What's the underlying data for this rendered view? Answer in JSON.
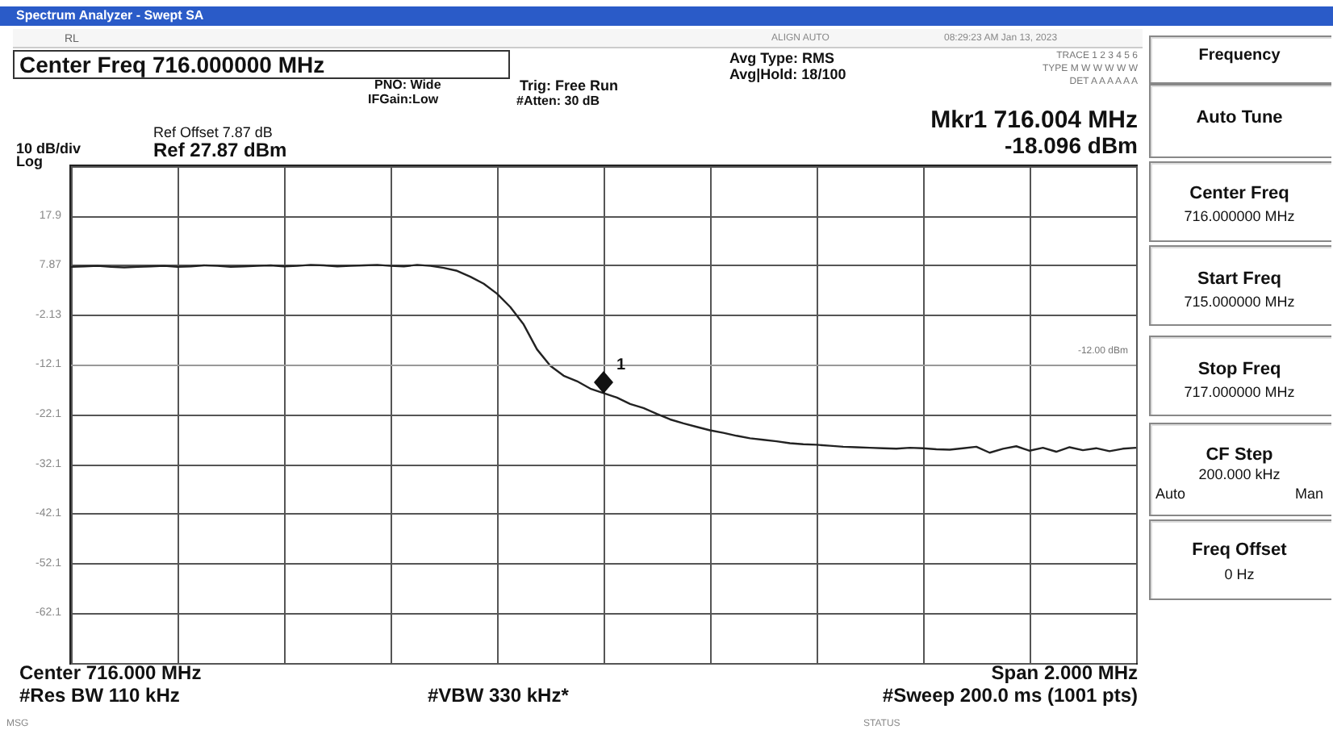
{
  "chart_data": {
    "type": "line",
    "title": "Spectrum Analyzer - Swept SA",
    "categories": [
      null,
      null,
      null,
      null,
      null,
      null,
      null,
      null,
      null,
      null,
      null,
      null,
      null,
      null,
      null,
      null,
      null,
      null,
      null,
      null,
      null,
      null,
      null,
      null,
      null,
      null,
      null,
      null,
      null,
      null,
      null,
      null,
      null,
      null,
      null,
      null,
      null,
      null,
      null,
      null,
      null,
      null,
      null,
      null,
      null,
      null,
      null,
      null,
      null,
      null,
      null,
      null,
      null,
      null,
      null,
      null,
      null,
      null,
      null,
      null,
      null,
      null,
      null,
      null,
      null,
      null,
      null,
      null,
      null,
      null,
      null,
      null,
      null,
      null,
      null,
      null,
      null,
      null,
      null,
      null,
      null
    ],
    "series": [
      {
        "color": "#222222",
        "values": [
          7.6,
          7.7,
          7.8,
          7.6,
          7.5,
          7.6,
          7.7,
          7.8,
          7.6,
          7.7,
          7.9,
          7.8,
          7.6,
          7.7,
          7.8,
          7.9,
          7.7,
          7.8,
          8.0,
          7.9,
          7.7,
          7.8,
          7.9,
          8.0,
          7.8,
          7.7,
          8.0,
          7.8,
          7.4,
          6.8,
          5.6,
          4.2,
          2.2,
          -0.5,
          -4.0,
          -9.0,
          -12.3,
          -14.3,
          -15.4,
          -16.9,
          -17.8,
          -18.7,
          -20.0,
          -20.8,
          -22.0,
          -23.1,
          -23.9,
          -24.6,
          -25.3,
          -25.8,
          -26.4,
          -26.9,
          -27.2,
          -27.5,
          -27.9,
          -28.1,
          -28.2,
          -28.4,
          -28.6,
          -28.7,
          -28.8,
          -28.9,
          -29.0,
          -28.8,
          -28.9,
          -29.1,
          -29.2,
          -28.9,
          -28.6,
          -29.8,
          -29.0,
          -28.5,
          -29.4,
          -28.8,
          -29.6,
          -28.7,
          -29.3,
          -28.9,
          -29.5,
          -29.0,
          -28.8
        ]
      }
    ],
    "ylim": [
      -72.13,
      27.87
    ],
    "yticks": [
      {
        "value": -72.13,
        "label": null
      },
      {
        "value": -62.13,
        "label": "-62.1"
      },
      {
        "value": -52.13,
        "label": "-52.1"
      },
      {
        "value": -42.13,
        "label": "-42.1"
      },
      {
        "value": -32.13,
        "label": "-32.1"
      },
      {
        "value": -22.13,
        "label": "-22.1"
      },
      {
        "value": -12.13,
        "label": "-12.1"
      },
      {
        "value": -2.13,
        "label": "-2.13"
      },
      7.87,
      {
        "value": 17.87,
        "label": "17.9"
      },
      {
        "value": 27.87,
        "label": null
      }
    ],
    "tick_labels": "y",
    "grid": true,
    "ref_lines": [
      {
        "axis": "y",
        "value": -12,
        "label": "-12.00 dBm"
      }
    ],
    "annotations": [
      "Center Freq 716.000000 MHz",
      "PNO: Wide",
      "IFGain:Low",
      "Trig: Free Run",
      "#Atten: 30 dB",
      "Avg Type: RMS",
      "Avg|Hold: 18/100",
      "TRACE 1 2 3 4 5 6",
      "TYPE M W W W W W",
      "DET A A A A A A",
      "Ref Offset 7.87 dB",
      "10 dB/div",
      "Ref 27.87 dBm",
      "Log",
      "Mkr1 716.004 MHz",
      "-18.096 dBm",
      "Center 716.000 MHz",
      "Span 2.000 MHz",
      "#Res BW 110 kHz",
      "#VBW 330 kHz*",
      "#Sweep 200.0 ms (1001 pts)",
      "08:29:23 AM Jan 13, 2023",
      "ALIGN AUTO",
      "RL",
      "MSG",
      "STATUS",
      "Frequency",
      "Auto Tune",
      "Center Freq",
      "716.000000 MHz",
      "Start Freq",
      "715.000000 MHz",
      "Stop Freq",
      "717.000000 MHz",
      "CF Step",
      "200.000 kHz",
      "Auto",
      "Man",
      "Freq Offset",
      "0 Hz",
      "1"
    ]
  }
}
